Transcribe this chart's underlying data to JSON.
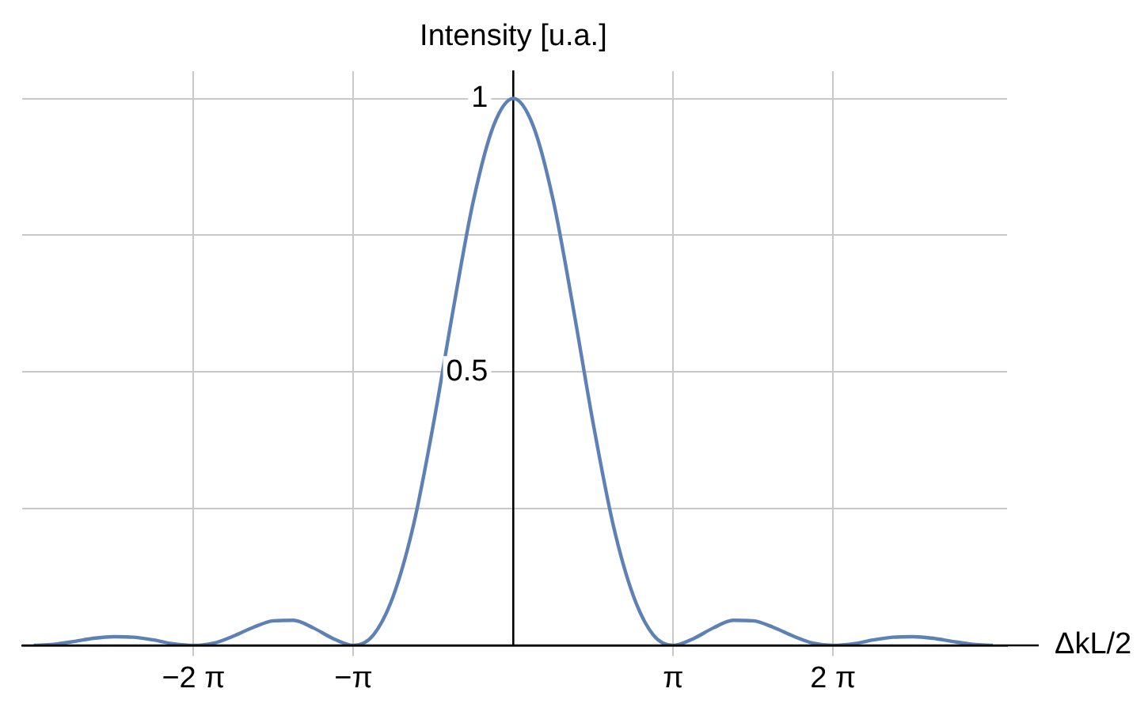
{
  "chart_data": {
    "type": "line",
    "xlabel": "ΔkL/2",
    "ylabel": "Intensity [u.a.]",
    "x": [
      -9.42,
      -9.03,
      -8.64,
      -8.25,
      -7.85,
      -7.46,
      -7.07,
      -6.68,
      -6.28,
      -5.89,
      -5.5,
      -5.11,
      -4.71,
      -4.32,
      -3.93,
      -3.53,
      -3.14,
      -2.75,
      -2.36,
      -1.96,
      -1.57,
      -1.18,
      -0.79,
      -0.39,
      0,
      0.39,
      0.79,
      1.18,
      1.57,
      1.96,
      2.36,
      2.75,
      3.14,
      3.53,
      3.93,
      4.32,
      4.71,
      5.11,
      5.5,
      5.89,
      6.28,
      6.68,
      7.07,
      7.46,
      7.85,
      8.25,
      8.64,
      9.03,
      9.42
    ],
    "values": [
      0,
      0.002,
      0.007,
      0.013,
      0.016,
      0.015,
      0.01,
      0.003,
      0,
      0.004,
      0.017,
      0.033,
      0.045,
      0.046,
      0.032,
      0.012,
      0,
      0.019,
      0.09,
      0.221,
      0.405,
      0.615,
      0.811,
      0.95,
      1,
      0.95,
      0.811,
      0.615,
      0.405,
      0.221,
      0.09,
      0.019,
      0,
      0.012,
      0.032,
      0.046,
      0.045,
      0.033,
      0.017,
      0.004,
      0,
      0.003,
      0.01,
      0.015,
      0.016,
      0.013,
      0.007,
      0.002,
      0
    ],
    "color": "#5e81b5",
    "marker": "none",
    "line_style": "solid",
    "grid": true,
    "legend": false,
    "xlim": [
      -9.65,
      9.7
    ],
    "ylim": [
      0,
      1.05
    ],
    "xticks": [
      {
        "value": -6.283,
        "label": "−2 π"
      },
      {
        "value": -3.1416,
        "label": "−π"
      },
      {
        "value": 3.1416,
        "label": "π"
      },
      {
        "value": 6.283,
        "label": "2 π"
      }
    ],
    "yticks": [
      {
        "value": 0.25,
        "label": null
      },
      0.5,
      {
        "value": 0.75,
        "label": null
      },
      1
    ]
  }
}
